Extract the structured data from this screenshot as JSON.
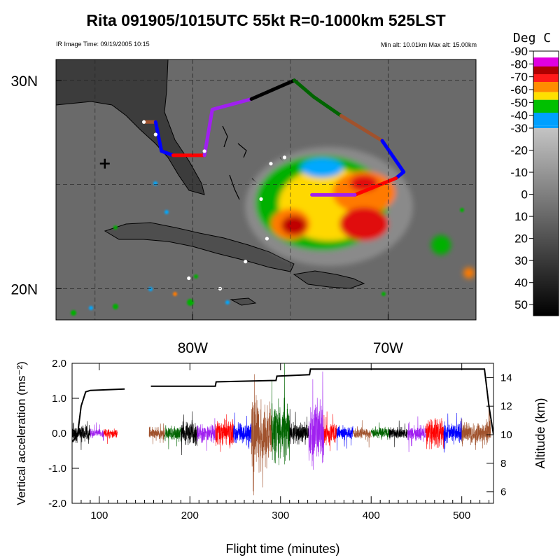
{
  "header": {
    "title": "Rita 091905/1015UTC 55kt  R=0-1000km 525LST",
    "ir_time": "IR Image Time: 09/19/2005 10:15",
    "alt_range": "Min alt: 10.01km  Max alt: 15.00km"
  },
  "colorbar": {
    "title": "Deg C",
    "labels": [
      "-90",
      "-80",
      "-70",
      "-60",
      "-50",
      "-40",
      "-30",
      "-20",
      "-10",
      "0",
      "10",
      "20",
      "30",
      "40",
      "50"
    ],
    "colors": [
      "#ffffff",
      "#e000e0",
      "#b00000",
      "#ff1a1a",
      "#ff8c00",
      "#ffe000",
      "#00c000",
      "#00a0ff",
      "#b8b8b8"
    ]
  },
  "chart_data": [
    {
      "type": "map",
      "xaxis": {
        "ticks": [
          -80,
          -70
        ],
        "tick_labels": [
          "80W",
          "70W"
        ]
      },
      "yaxis": {
        "ticks": [
          20,
          30
        ],
        "tick_labels": [
          "20N",
          "30N"
        ]
      },
      "extent": {
        "lon": [
          -87,
          -65.5
        ],
        "lat": [
          18.5,
          31
        ]
      },
      "colorbar_range": [
        -90,
        55
      ],
      "flight_segments": [
        {
          "color": "brown",
          "lonlat": [
            [
              -82.5,
              28.0
            ],
            [
              -81.9,
              28.0
            ]
          ]
        },
        {
          "color": "blue",
          "lonlat": [
            [
              -81.9,
              28.0
            ],
            [
              -81.6,
              26.6
            ],
            [
              -81.0,
              26.4
            ]
          ]
        },
        {
          "color": "red",
          "lonlat": [
            [
              -81.0,
              26.4
            ],
            [
              -79.4,
              26.4
            ]
          ]
        },
        {
          "color": "purple",
          "lonlat": [
            [
              -79.4,
              26.4
            ],
            [
              -79.0,
              28.6
            ],
            [
              -77.0,
              29.1
            ]
          ]
        },
        {
          "color": "black",
          "lonlat": [
            [
              -77.0,
              29.1
            ],
            [
              -74.8,
              30.0
            ]
          ]
        },
        {
          "color": "green",
          "lonlat": [
            [
              -74.8,
              30.0
            ],
            [
              -73.8,
              29.2
            ],
            [
              -72.4,
              28.3
            ]
          ]
        },
        {
          "color": "brown",
          "lonlat": [
            [
              -72.4,
              28.3
            ],
            [
              -70.3,
              27.1
            ]
          ]
        },
        {
          "color": "blue",
          "lonlat": [
            [
              -70.3,
              27.1
            ],
            [
              -69.2,
              25.6
            ],
            [
              -69.6,
              25.3
            ]
          ]
        },
        {
          "color": "red",
          "lonlat": [
            [
              -69.6,
              25.3
            ],
            [
              -71.7,
              24.5
            ]
          ]
        },
        {
          "color": "purple",
          "lonlat": [
            [
              -71.7,
              24.5
            ],
            [
              -73.9,
              24.5
            ]
          ]
        }
      ],
      "drop_points": [
        {
          "lon": -82.5,
          "lat": 28.0
        },
        {
          "lon": -81.9,
          "lat": 27.4
        },
        {
          "lon": -79.4,
          "lat": 26.6
        },
        {
          "lon": -76.0,
          "lat": 26.0
        },
        {
          "lon": -75.3,
          "lat": 26.3
        },
        {
          "lon": -76.5,
          "lat": 24.3
        },
        {
          "lon": -77.3,
          "lat": 21.3
        },
        {
          "lon": -78.6,
          "lat": 20.0
        },
        {
          "lon": -80.2,
          "lat": 20.5
        },
        {
          "lon": -76.2,
          "lat": 22.4
        }
      ],
      "storm_center_marker": {
        "lon": -84.5,
        "lat": 26.0
      }
    },
    {
      "type": "line",
      "title": "",
      "xlabel": "Flight time (minutes)",
      "ylabel": "Vertical acceleration (ms⁻²)",
      "y2label": "Altitude (km)",
      "xlim": [
        70,
        535
      ],
      "ylim": [
        -2.0,
        2.0
      ],
      "y2lim": [
        5.2,
        15.0
      ],
      "x_ticks": [
        100,
        200,
        300,
        400,
        500
      ],
      "y_ticks": [
        -2.0,
        -1.0,
        0.0,
        1.0,
        2.0
      ],
      "y_tick_labels": [
        "-2.0",
        "-1.0",
        "0.0",
        "1.0",
        "2.0"
      ],
      "y2_ticks": [
        6,
        8,
        10,
        12,
        14
      ],
      "series": [
        {
          "axis": "y2",
          "segments": [
            [
              [
                70,
                9.5
              ],
              [
                76,
                10.0
              ],
              [
                80,
                12.0
              ],
              [
                85,
                13.0
              ],
              [
                90,
                13.1
              ],
              [
                128,
                13.2
              ]
            ],
            [
              [
                157,
                13.4
              ],
              [
                228,
                13.4
              ],
              [
                229,
                13.7
              ],
              [
                295,
                13.8
              ],
              [
                296,
                14.1
              ],
              [
                332,
                14.2
              ],
              [
                333,
                14.6
              ],
              [
                525,
                14.6
              ],
              [
                530,
                12.0
              ],
              [
                535,
                10.0
              ]
            ]
          ]
        },
        {
          "axis": "y1",
          "color_segments": [
            {
              "color": "#000000",
              "x": [
                72,
                90
              ],
              "amp": 0.3
            },
            {
              "color": "#a020f0",
              "x": [
                90,
                105
              ],
              "amp": 0.15
            },
            {
              "color": "#ff0000",
              "x": [
                105,
                120
              ],
              "amp": 0.15
            },
            {
              "color": "#000000",
              "x": [
                70,
                72
              ],
              "amp": 0.2
            },
            {
              "color": "#a0522d",
              "x": [
                155,
                172
              ],
              "amp": 0.2
            },
            {
              "color": "#006400",
              "x": [
                172,
                190
              ],
              "amp": 0.25
            },
            {
              "color": "#000000",
              "x": [
                190,
                208
              ],
              "amp": 0.4
            },
            {
              "color": "#a020f0",
              "x": [
                208,
                228
              ],
              "amp": 0.3
            },
            {
              "color": "#ff0000",
              "x": [
                228,
                248
              ],
              "amp": 0.45
            },
            {
              "color": "#0000ff",
              "x": [
                248,
                268
              ],
              "amp": 0.35
            },
            {
              "color": "#a0522d",
              "x": [
                268,
                290
              ],
              "amp": 1.2
            },
            {
              "color": "#006400",
              "x": [
                290,
                310
              ],
              "amp": 1.0
            },
            {
              "color": "#000000",
              "x": [
                310,
                331
              ],
              "amp": 0.35
            },
            {
              "color": "#a020f0",
              "x": [
                331,
                348
              ],
              "amp": 1.1
            },
            {
              "color": "#ff0000",
              "x": [
                348,
                362
              ],
              "amp": 0.3
            },
            {
              "color": "#0000ff",
              "x": [
                362,
                380
              ],
              "amp": 0.25
            },
            {
              "color": "#a0522d",
              "x": [
                380,
                400
              ],
              "amp": 0.2
            },
            {
              "color": "#006400",
              "x": [
                400,
                420
              ],
              "amp": 0.2
            },
            {
              "color": "#000000",
              "x": [
                420,
                440
              ],
              "amp": 0.2
            },
            {
              "color": "#a020f0",
              "x": [
                440,
                460
              ],
              "amp": 0.25
            },
            {
              "color": "#ff0000",
              "x": [
                460,
                480
              ],
              "amp": 0.5
            },
            {
              "color": "#0000ff",
              "x": [
                480,
                500
              ],
              "amp": 0.35
            },
            {
              "color": "#a0522d",
              "x": [
                500,
                532
              ],
              "amp": 0.4
            }
          ]
        }
      ]
    }
  ]
}
